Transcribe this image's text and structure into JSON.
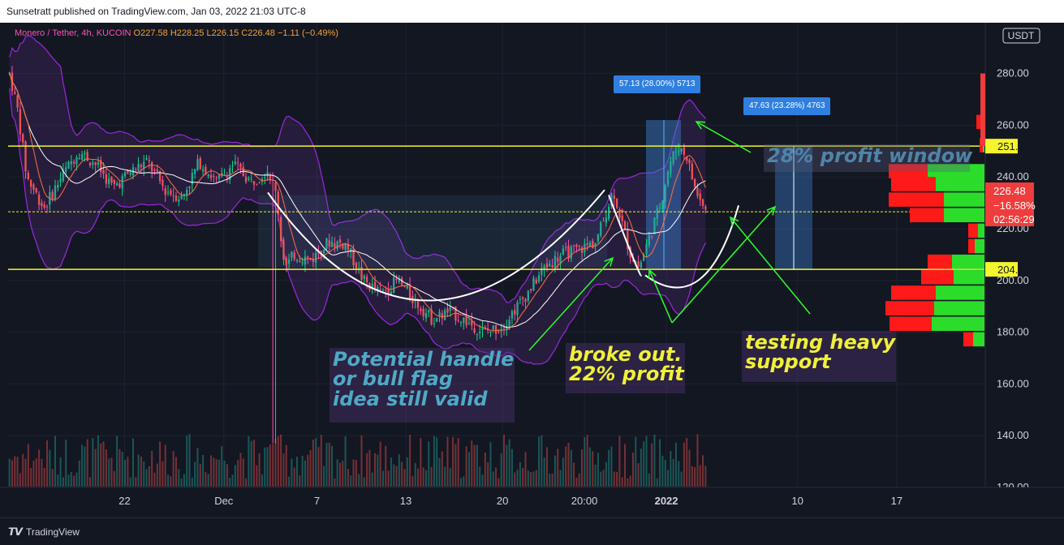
{
  "header": {
    "published": "Sunsetratt published on TradingView.com, Jan 03, 2022 21:03 UTC-8"
  },
  "legend": {
    "symbol": "Monero / Tether, 4h, KUCOIN",
    "o": "O227.58",
    "h": "H228.25",
    "l": "L226.15",
    "c": "C226.48",
    "change": "−1.11 (−0.49%)"
  },
  "axis": {
    "unit": "USDT"
  },
  "price_tags": {
    "top": "251.92",
    "mid": "226.54",
    "bottom": "204.29",
    "current": "226.48",
    "current_change": "−16.58%",
    "countdown": "02:56:29"
  },
  "measures": {
    "first": "57.13 (28.00%) 5713",
    "second": "47.63 (23.28%) 4763"
  },
  "notes": {
    "handle": "Potential handle\nor bull flag\nidea still valid",
    "broke": "broke out.\n22% profit",
    "testing": "testing heavy\nsupport",
    "window": "28% profit window"
  },
  "footer": {
    "brand": "TradingView"
  },
  "colors": {
    "up": "#26a69a",
    "down": "#ef5350",
    "wick_up": "#00e676",
    "wick_down": "#ff4fb5",
    "level": "#f5f52e",
    "bollinger": "#9c27e0",
    "annotation": "#2bff2b",
    "cup": "#ffffff"
  },
  "chart_data": {
    "type": "candlestick",
    "ylim": [
      110,
      290
    ],
    "y_ticks": [
      120,
      140,
      160,
      180,
      200,
      220,
      240,
      260,
      280
    ],
    "x_ticks": [
      {
        "label": "22",
        "x": 0.135
      },
      {
        "label": "Dec",
        "x": 0.25
      },
      {
        "label": "7",
        "x": 0.358
      },
      {
        "label": "13",
        "x": 0.461
      },
      {
        "label": "20",
        "x": 0.573
      },
      {
        "label": "20:00",
        "x": 0.668
      },
      {
        "label": "2022",
        "x": 0.763
      },
      {
        "label": "10",
        "x": 0.915
      },
      {
        "label": "17",
        "x": 1.03
      }
    ],
    "levels": [
      251.92,
      226.54,
      204.29
    ],
    "price_path": [
      [
        0.0,
        280
      ],
      [
        0.01,
        265
      ],
      [
        0.02,
        240
      ],
      [
        0.04,
        228
      ],
      [
        0.06,
        240
      ],
      [
        0.08,
        250
      ],
      [
        0.1,
        245
      ],
      [
        0.12,
        236
      ],
      [
        0.14,
        242
      ],
      [
        0.16,
        246
      ],
      [
        0.18,
        235
      ],
      [
        0.2,
        232
      ],
      [
        0.22,
        246
      ],
      [
        0.24,
        238
      ],
      [
        0.26,
        245
      ],
      [
        0.28,
        238
      ],
      [
        0.3,
        243
      ],
      [
        0.31,
        232
      ],
      [
        0.315,
        215
      ],
      [
        0.32,
        205
      ],
      [
        0.33,
        210
      ],
      [
        0.35,
        208
      ],
      [
        0.37,
        215
      ],
      [
        0.39,
        214
      ],
      [
        0.41,
        200
      ],
      [
        0.43,
        195
      ],
      [
        0.45,
        200
      ],
      [
        0.47,
        192
      ],
      [
        0.49,
        185
      ],
      [
        0.51,
        188
      ],
      [
        0.53,
        184
      ],
      [
        0.55,
        180
      ],
      [
        0.57,
        182
      ],
      [
        0.6,
        195
      ],
      [
        0.62,
        205
      ],
      [
        0.64,
        210
      ],
      [
        0.66,
        212
      ],
      [
        0.68,
        215
      ],
      [
        0.69,
        225
      ],
      [
        0.7,
        235
      ],
      [
        0.71,
        222
      ],
      [
        0.72,
        210
      ],
      [
        0.73,
        205
      ],
      [
        0.74,
        215
      ],
      [
        0.755,
        230
      ],
      [
        0.765,
        245
      ],
      [
        0.775,
        252
      ],
      [
        0.785,
        248
      ],
      [
        0.795,
        235
      ],
      [
        0.805,
        228
      ],
      [
        0.81,
        226
      ]
    ],
    "volume_max": 140
  }
}
